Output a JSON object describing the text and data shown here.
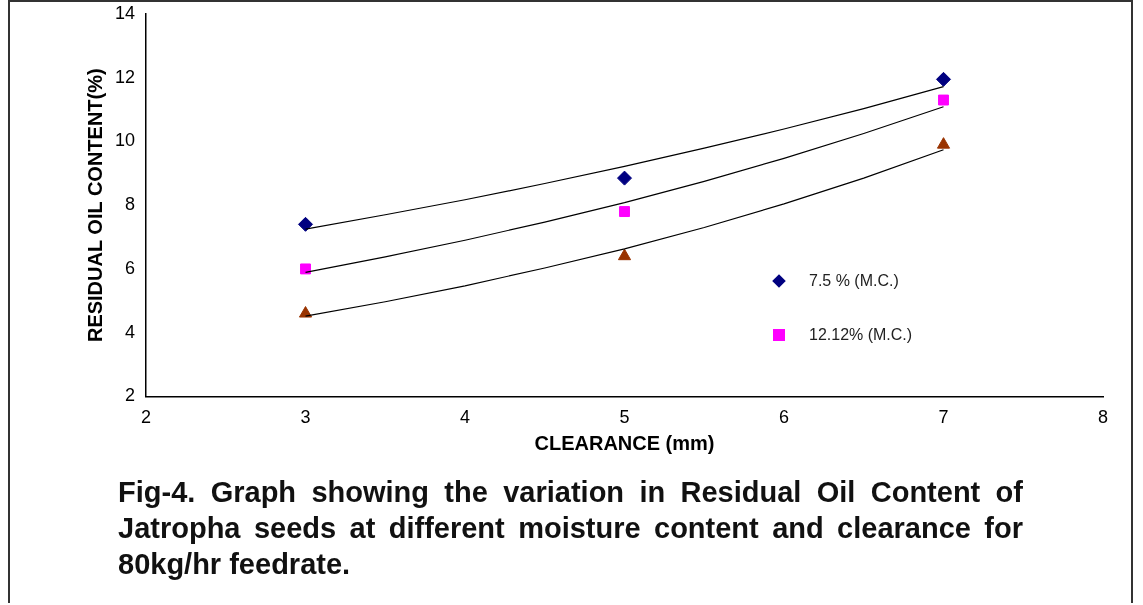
{
  "chart_data": {
    "type": "scatter",
    "title": "Fig-4. Graph showing the variation in Residual Oil Content of Jatropha seeds at different moisture content and clearance for 80kg/hr feedrate.",
    "xlabel": "CLEARANCE (mm)",
    "ylabel": "RESIDUAL OIL CONTENT(%)",
    "xlim": [
      2,
      8
    ],
    "xticks": [
      2,
      3,
      4,
      5,
      6,
      7,
      8
    ],
    "ylim": [
      2,
      14
    ],
    "yticks": [
      2,
      4,
      6,
      8,
      10,
      12,
      14
    ],
    "grid": false,
    "legend": "bottom right",
    "series": [
      {
        "name": "7.5 % (M.C.)",
        "color": "#000080",
        "marker": "diamond",
        "x": [
          3,
          5,
          7
        ],
        "values": [
          7.4,
          8.85,
          11.95
        ]
      },
      {
        "name": "12.12% (M.C.)",
        "color": "#ff00ff",
        "marker": "square",
        "x": [
          3,
          5,
          7
        ],
        "values": [
          6.0,
          7.8,
          11.3
        ]
      },
      {
        "color": "#993300",
        "marker": "triangle",
        "x": [
          3,
          5,
          7
        ],
        "values": [
          4.6,
          6.4,
          9.9
        ]
      },
      {
        "type": "line",
        "color": "#000000",
        "marker": "none",
        "x": [
          3,
          3.5,
          4,
          4.5,
          5,
          5.5,
          6,
          6.5,
          7
        ],
        "values": [
          7.25,
          7.7,
          8.17,
          8.68,
          9.22,
          9.79,
          10.39,
          11.03,
          11.72
        ]
      },
      {
        "type": "line",
        "color": "#000000",
        "marker": "none",
        "x": [
          3,
          3.5,
          4,
          4.5,
          5,
          5.5,
          6,
          6.5,
          7
        ],
        "values": [
          5.89,
          6.38,
          6.9,
          7.47,
          8.08,
          8.75,
          9.47,
          10.25,
          11.09
        ]
      },
      {
        "type": "line",
        "color": "#000000",
        "marker": "none",
        "x": [
          3,
          3.5,
          4,
          4.5,
          5,
          5.5,
          6,
          6.5,
          7
        ],
        "values": [
          4.52,
          4.97,
          5.47,
          6.03,
          6.63,
          7.3,
          8.04,
          8.85,
          9.74
        ]
      }
    ]
  }
}
